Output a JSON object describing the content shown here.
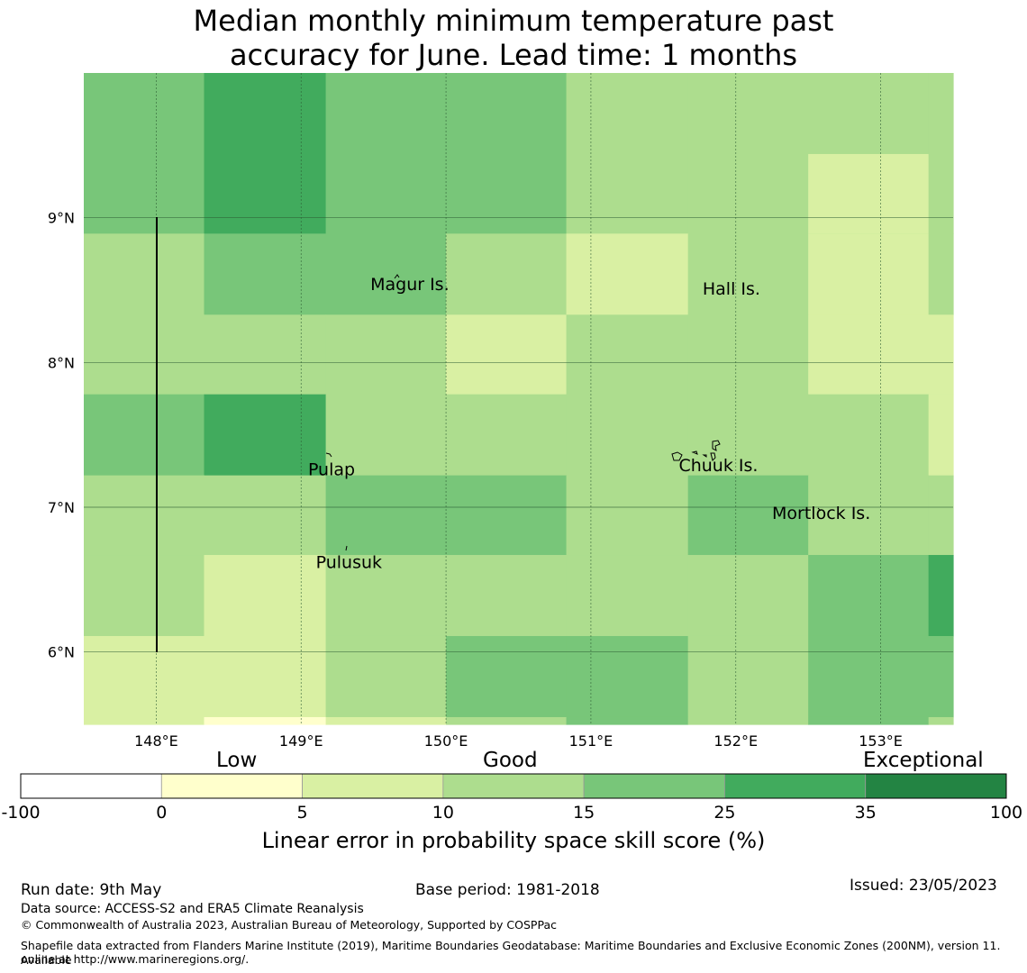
{
  "title_line1": "Median monthly minimum temperature past",
  "title_line2": "accuracy for June. Lead time: 1 months",
  "map": {
    "lon_range": [
      147.5,
      153.5
    ],
    "lat_range": [
      5.5,
      10.0
    ],
    "lon_ticks": [
      {
        "value": 148,
        "label": "148°E"
      },
      {
        "value": 149,
        "label": "149°E"
      },
      {
        "value": 150,
        "label": "150°E"
      },
      {
        "value": 151,
        "label": "151°E"
      },
      {
        "value": 152,
        "label": "152°E"
      },
      {
        "value": 153,
        "label": "153°E"
      }
    ],
    "lat_ticks": [
      {
        "value": 9,
        "label": "9°N"
      },
      {
        "value": 8,
        "label": "8°N"
      },
      {
        "value": 7,
        "label": "7°N"
      },
      {
        "value": 6,
        "label": "6°N"
      }
    ],
    "grid_lines": true,
    "cell_lon_edges": [
      147.5,
      148.33,
      149.17,
      150.0,
      150.83,
      151.67,
      152.5,
      153.33,
      153.5
    ],
    "cell_lat_edges": [
      10.0,
      8.89,
      8.33,
      7.78,
      7.22,
      6.67,
      6.11,
      5.55,
      5.5
    ],
    "skill_classes": [
      [
        4,
        5,
        4,
        4,
        3,
        3,
        3,
        3
      ],
      [
        3,
        4,
        4,
        3,
        2,
        3,
        2,
        3
      ],
      [
        3,
        3,
        3,
        2,
        3,
        3,
        2,
        2
      ],
      [
        4,
        5,
        3,
        3,
        3,
        3,
        3,
        2
      ],
      [
        3,
        3,
        4,
        4,
        3,
        4,
        3,
        3
      ],
      [
        3,
        2,
        3,
        3,
        3,
        3,
        4,
        5
      ],
      [
        2,
        2,
        3,
        4,
        4,
        3,
        4,
        4
      ],
      [
        2,
        1,
        2,
        3,
        4,
        3,
        4,
        3
      ]
    ],
    "upper_right_patch": {
      "lon": [
        152.5,
        153.33
      ],
      "lat": [
        9.44,
        8.89
      ],
      "class": 2
    },
    "places": [
      {
        "name": "Magur Is.",
        "lon": 149.75,
        "lat": 8.5
      },
      {
        "name": "Hall Is.",
        "lon": 151.97,
        "lat": 8.47
      },
      {
        "name": "Pulap",
        "lon": 149.21,
        "lat": 7.22
      },
      {
        "name": "Chuuk Is.",
        "lon": 151.88,
        "lat": 7.25
      },
      {
        "name": "Mortlock Is.",
        "lon": 152.59,
        "lat": 6.92
      },
      {
        "name": "Pulusuk",
        "lon": 149.33,
        "lat": 6.58
      }
    ]
  },
  "legend": {
    "colors": [
      "#ffffff",
      "#ffffcc",
      "#d9f0a3",
      "#addd8e",
      "#78c679",
      "#41ab5d",
      "#238443"
    ],
    "ticks": [
      "-100",
      "0",
      "5",
      "10",
      "15",
      "25",
      "35",
      "100"
    ],
    "low_label": "Low",
    "good_label": "Good",
    "exceptional_label": "Exceptional",
    "title": "Linear error in probability space skill score (%)"
  },
  "footer": {
    "run_date": "Run date: 9th May",
    "base_period": "Base period: 1981-2018",
    "issued": "Issued: 23/05/2023",
    "data_source": "Data source: ACCESS-S2 and ERA5 Climate Reanalysis",
    "copyright": "© Commonwealth of Australia 2023, Australian Bureau of Meteorology, Supported by COSPPac",
    "shapefile_line1": "Shapefile data extracted from Flanders Marine Institute (2019), Maritime Boundaries Geodatabase: Maritime Boundaries and Exclusive Economic Zones (200NM), version 11. Available",
    "shapefile_line2": "online at http://www.marineregions.org/."
  }
}
